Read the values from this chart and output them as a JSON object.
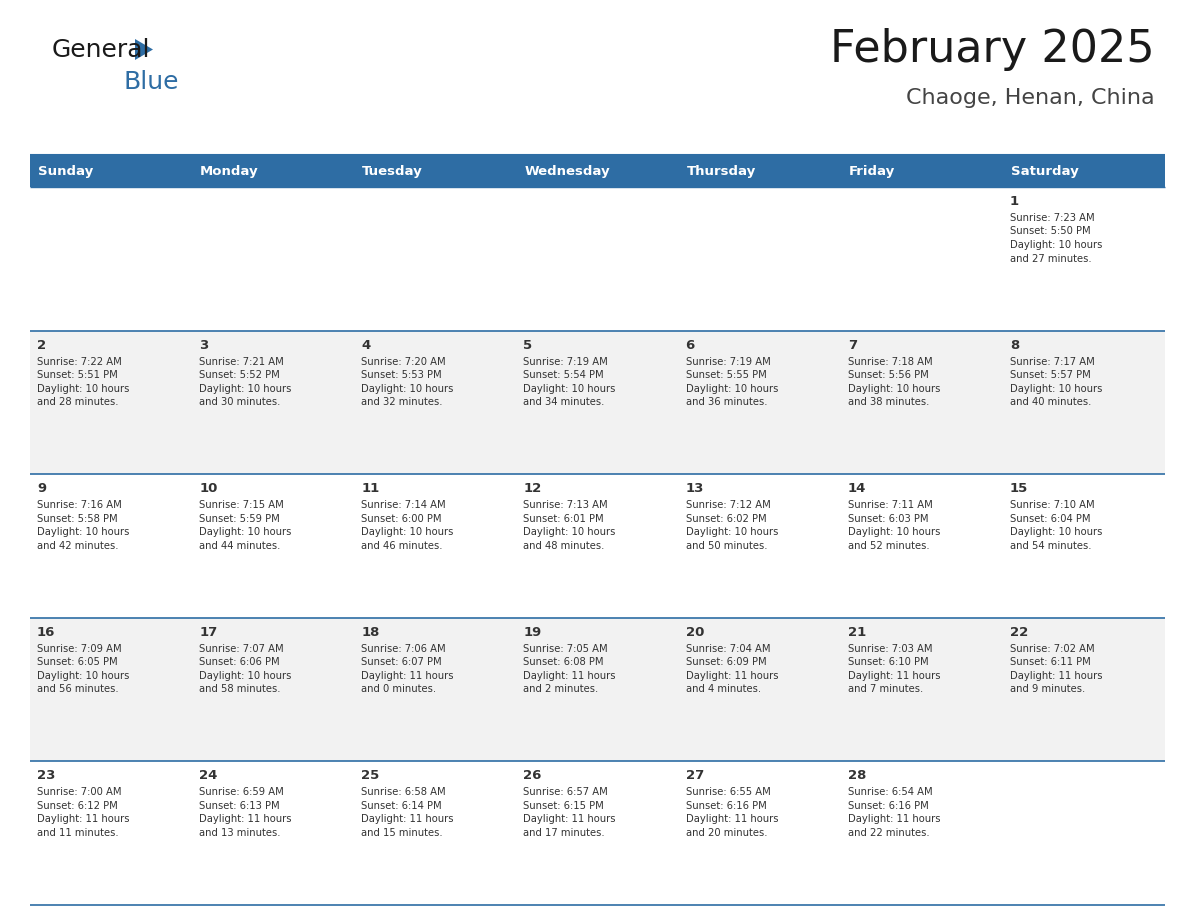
{
  "title": "February 2025",
  "subtitle": "Chaoge, Henan, China",
  "header_bg": "#2E6DA4",
  "header_text": "#FFFFFF",
  "cell_bg_light": "#F2F2F2",
  "cell_bg_white": "#FFFFFF",
  "border_color": "#2E6DA4",
  "day_headers": [
    "Sunday",
    "Monday",
    "Tuesday",
    "Wednesday",
    "Thursday",
    "Friday",
    "Saturday"
  ],
  "title_color": "#1a1a1a",
  "subtitle_color": "#444444",
  "general_text": "#333333",
  "days": [
    {
      "date": 1,
      "col": 6,
      "row": 0,
      "sunrise": "7:23 AM",
      "sunset": "5:50 PM",
      "daylight": "10 hours and 27 minutes."
    },
    {
      "date": 2,
      "col": 0,
      "row": 1,
      "sunrise": "7:22 AM",
      "sunset": "5:51 PM",
      "daylight": "10 hours and 28 minutes."
    },
    {
      "date": 3,
      "col": 1,
      "row": 1,
      "sunrise": "7:21 AM",
      "sunset": "5:52 PM",
      "daylight": "10 hours and 30 minutes."
    },
    {
      "date": 4,
      "col": 2,
      "row": 1,
      "sunrise": "7:20 AM",
      "sunset": "5:53 PM",
      "daylight": "10 hours and 32 minutes."
    },
    {
      "date": 5,
      "col": 3,
      "row": 1,
      "sunrise": "7:19 AM",
      "sunset": "5:54 PM",
      "daylight": "10 hours and 34 minutes."
    },
    {
      "date": 6,
      "col": 4,
      "row": 1,
      "sunrise": "7:19 AM",
      "sunset": "5:55 PM",
      "daylight": "10 hours and 36 minutes."
    },
    {
      "date": 7,
      "col": 5,
      "row": 1,
      "sunrise": "7:18 AM",
      "sunset": "5:56 PM",
      "daylight": "10 hours and 38 minutes."
    },
    {
      "date": 8,
      "col": 6,
      "row": 1,
      "sunrise": "7:17 AM",
      "sunset": "5:57 PM",
      "daylight": "10 hours and 40 minutes."
    },
    {
      "date": 9,
      "col": 0,
      "row": 2,
      "sunrise": "7:16 AM",
      "sunset": "5:58 PM",
      "daylight": "10 hours and 42 minutes."
    },
    {
      "date": 10,
      "col": 1,
      "row": 2,
      "sunrise": "7:15 AM",
      "sunset": "5:59 PM",
      "daylight": "10 hours and 44 minutes."
    },
    {
      "date": 11,
      "col": 2,
      "row": 2,
      "sunrise": "7:14 AM",
      "sunset": "6:00 PM",
      "daylight": "10 hours and 46 minutes."
    },
    {
      "date": 12,
      "col": 3,
      "row": 2,
      "sunrise": "7:13 AM",
      "sunset": "6:01 PM",
      "daylight": "10 hours and 48 minutes."
    },
    {
      "date": 13,
      "col": 4,
      "row": 2,
      "sunrise": "7:12 AM",
      "sunset": "6:02 PM",
      "daylight": "10 hours and 50 minutes."
    },
    {
      "date": 14,
      "col": 5,
      "row": 2,
      "sunrise": "7:11 AM",
      "sunset": "6:03 PM",
      "daylight": "10 hours and 52 minutes."
    },
    {
      "date": 15,
      "col": 6,
      "row": 2,
      "sunrise": "7:10 AM",
      "sunset": "6:04 PM",
      "daylight": "10 hours and 54 minutes."
    },
    {
      "date": 16,
      "col": 0,
      "row": 3,
      "sunrise": "7:09 AM",
      "sunset": "6:05 PM",
      "daylight": "10 hours and 56 minutes."
    },
    {
      "date": 17,
      "col": 1,
      "row": 3,
      "sunrise": "7:07 AM",
      "sunset": "6:06 PM",
      "daylight": "10 hours and 58 minutes."
    },
    {
      "date": 18,
      "col": 2,
      "row": 3,
      "sunrise": "7:06 AM",
      "sunset": "6:07 PM",
      "daylight": "11 hours and 0 minutes."
    },
    {
      "date": 19,
      "col": 3,
      "row": 3,
      "sunrise": "7:05 AM",
      "sunset": "6:08 PM",
      "daylight": "11 hours and 2 minutes."
    },
    {
      "date": 20,
      "col": 4,
      "row": 3,
      "sunrise": "7:04 AM",
      "sunset": "6:09 PM",
      "daylight": "11 hours and 4 minutes."
    },
    {
      "date": 21,
      "col": 5,
      "row": 3,
      "sunrise": "7:03 AM",
      "sunset": "6:10 PM",
      "daylight": "11 hours and 7 minutes."
    },
    {
      "date": 22,
      "col": 6,
      "row": 3,
      "sunrise": "7:02 AM",
      "sunset": "6:11 PM",
      "daylight": "11 hours and 9 minutes."
    },
    {
      "date": 23,
      "col": 0,
      "row": 4,
      "sunrise": "7:00 AM",
      "sunset": "6:12 PM",
      "daylight": "11 hours and 11 minutes."
    },
    {
      "date": 24,
      "col": 1,
      "row": 4,
      "sunrise": "6:59 AM",
      "sunset": "6:13 PM",
      "daylight": "11 hours and 13 minutes."
    },
    {
      "date": 25,
      "col": 2,
      "row": 4,
      "sunrise": "6:58 AM",
      "sunset": "6:14 PM",
      "daylight": "11 hours and 15 minutes."
    },
    {
      "date": 26,
      "col": 3,
      "row": 4,
      "sunrise": "6:57 AM",
      "sunset": "6:15 PM",
      "daylight": "11 hours and 17 minutes."
    },
    {
      "date": 27,
      "col": 4,
      "row": 4,
      "sunrise": "6:55 AM",
      "sunset": "6:16 PM",
      "daylight": "11 hours and 20 minutes."
    },
    {
      "date": 28,
      "col": 5,
      "row": 4,
      "sunrise": "6:54 AM",
      "sunset": "6:16 PM",
      "daylight": "11 hours and 22 minutes."
    }
  ],
  "num_rows": 5,
  "num_cols": 7
}
